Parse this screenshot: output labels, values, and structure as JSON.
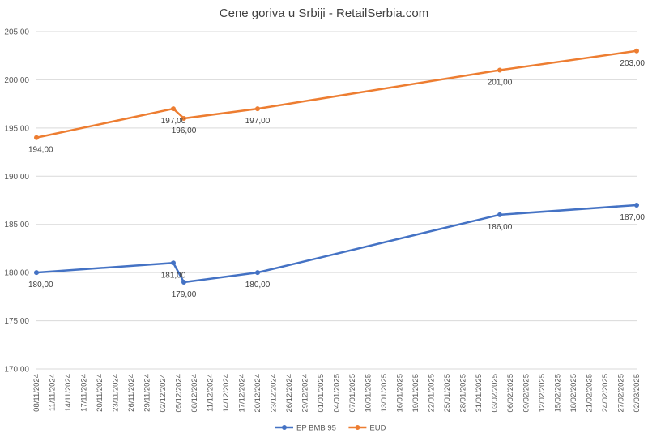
{
  "chart_data": {
    "type": "line",
    "title": "Cene goriva u Srbiji - RetailSerbia.com",
    "xlabel": "",
    "ylabel": "",
    "ylim": [
      170,
      205
    ],
    "yticks": [
      "170,00",
      "175,00",
      "180,00",
      "185,00",
      "190,00",
      "195,00",
      "200,00",
      "205,00"
    ],
    "x_axis_type": "date",
    "x_range": [
      "2024-11-08",
      "2025-03-02"
    ],
    "x_tick_labels": [
      "08/11/2024",
      "11/11/2024",
      "14/11/2024",
      "17/11/2024",
      "20/11/2024",
      "23/11/2024",
      "26/11/2024",
      "29/11/2024",
      "02/12/2024",
      "05/12/2024",
      "08/12/2024",
      "11/12/2024",
      "14/12/2024",
      "17/12/2024",
      "20/12/2024",
      "23/12/2024",
      "26/12/2024",
      "29/12/2024",
      "01/01/2025",
      "04/01/2025",
      "07/01/2025",
      "10/01/2025",
      "13/01/2025",
      "16/01/2025",
      "19/01/2025",
      "22/01/2025",
      "25/01/2025",
      "28/01/2025",
      "31/01/2025",
      "03/02/2025",
      "06/02/2025",
      "09/02/2025",
      "12/02/2025",
      "15/02/2025",
      "18/02/2025",
      "21/02/2025",
      "24/02/2025",
      "27/02/2025",
      "02/03/2025"
    ],
    "grid": "horizontal",
    "legend_position": "bottom",
    "series": [
      {
        "name": "EP BMB 95",
        "color": "#4472C4",
        "points": [
          {
            "x": "2024-11-08",
            "y": 180,
            "label": "180,00"
          },
          {
            "x": "2024-12-04",
            "y": 181,
            "label": "181,00"
          },
          {
            "x": "2024-12-06",
            "y": 179,
            "label": "179,00"
          },
          {
            "x": "2024-12-20",
            "y": 180,
            "label": "180,00"
          },
          {
            "x": "2025-02-04",
            "y": 186,
            "label": "186,00"
          },
          {
            "x": "2025-03-02",
            "y": 187,
            "label": "187,00"
          }
        ]
      },
      {
        "name": "EUD",
        "color": "#ED7D31",
        "points": [
          {
            "x": "2024-11-08",
            "y": 194,
            "label": "194,00"
          },
          {
            "x": "2024-12-04",
            "y": 197,
            "label": "197,00"
          },
          {
            "x": "2024-12-06",
            "y": 196,
            "label": "196,00"
          },
          {
            "x": "2024-12-20",
            "y": 197,
            "label": "197,00"
          },
          {
            "x": "2025-02-04",
            "y": 201,
            "label": "201,00"
          },
          {
            "x": "2025-03-02",
            "y": 203,
            "label": "203,00"
          }
        ]
      }
    ]
  }
}
